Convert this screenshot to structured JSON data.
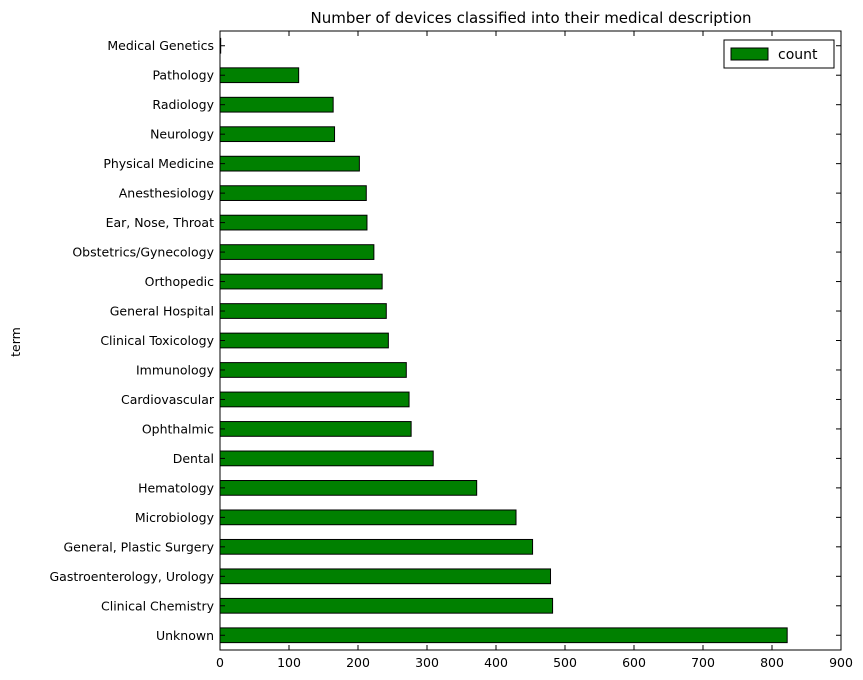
{
  "chart_data": {
    "type": "bar",
    "orientation": "horizontal",
    "title": "Number of devices classified into their medical description",
    "ylabel": "term",
    "xlabel": "",
    "xlim": [
      0,
      900
    ],
    "xticks": [
      0,
      100,
      200,
      300,
      400,
      500,
      600,
      700,
      800,
      900
    ],
    "bar_color": "#008000",
    "legend_position": "top-right",
    "series": [
      {
        "name": "count",
        "values": [
          822,
          482,
          479,
          453,
          429,
          372,
          309,
          277,
          274,
          270,
          244,
          241,
          235,
          223,
          213,
          212,
          202,
          166,
          164,
          114,
          1
        ]
      }
    ],
    "categories": [
      "Unknown",
      "Clinical Chemistry",
      "Gastroenterology, Urology",
      "General, Plastic Surgery",
      "Microbiology",
      "Hematology",
      "Dental",
      "Ophthalmic",
      "Cardiovascular",
      "Immunology",
      "Clinical Toxicology",
      "General Hospital",
      "Orthopedic",
      "Obstetrics/Gynecology",
      "Ear, Nose, Throat",
      "Anesthesiology",
      "Physical Medicine",
      "Neurology",
      "Radiology",
      "Pathology",
      "Medical Genetics"
    ]
  }
}
